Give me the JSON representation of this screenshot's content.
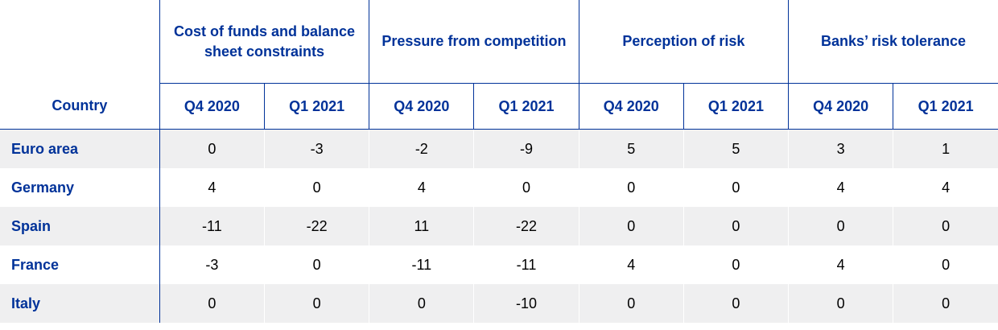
{
  "header": {
    "country_label": "Country",
    "groups": [
      {
        "label": "Cost of funds and balance sheet constraints"
      },
      {
        "label": "Pressure from competition"
      },
      {
        "label": "Perception of risk"
      },
      {
        "label": "Banks’ risk tolerance"
      }
    ],
    "quarters": [
      "Q4 2020",
      "Q1 2021",
      "Q4 2020",
      "Q1 2021",
      "Q4 2020",
      "Q1 2021",
      "Q4 2020",
      "Q1 2021"
    ]
  },
  "rows": [
    {
      "country": "Euro area",
      "values": [
        "0",
        "-3",
        "-2",
        "-9",
        "5",
        "5",
        "3",
        "1"
      ]
    },
    {
      "country": "Germany",
      "values": [
        "4",
        "0",
        "4",
        "0",
        "0",
        "0",
        "4",
        "4"
      ]
    },
    {
      "country": "Spain",
      "values": [
        "-11",
        "-22",
        "11",
        "-22",
        "0",
        "0",
        "0",
        "0"
      ]
    },
    {
      "country": "France",
      "values": [
        "-3",
        "0",
        "-11",
        "-11",
        "4",
        "0",
        "4",
        "0"
      ]
    },
    {
      "country": "Italy",
      "values": [
        "0",
        "0",
        "0",
        "-10",
        "0",
        "0",
        "0",
        "0"
      ]
    }
  ],
  "colors": {
    "header_text": "#003299",
    "row_shade": "#efeff0",
    "rule": "#003299"
  }
}
